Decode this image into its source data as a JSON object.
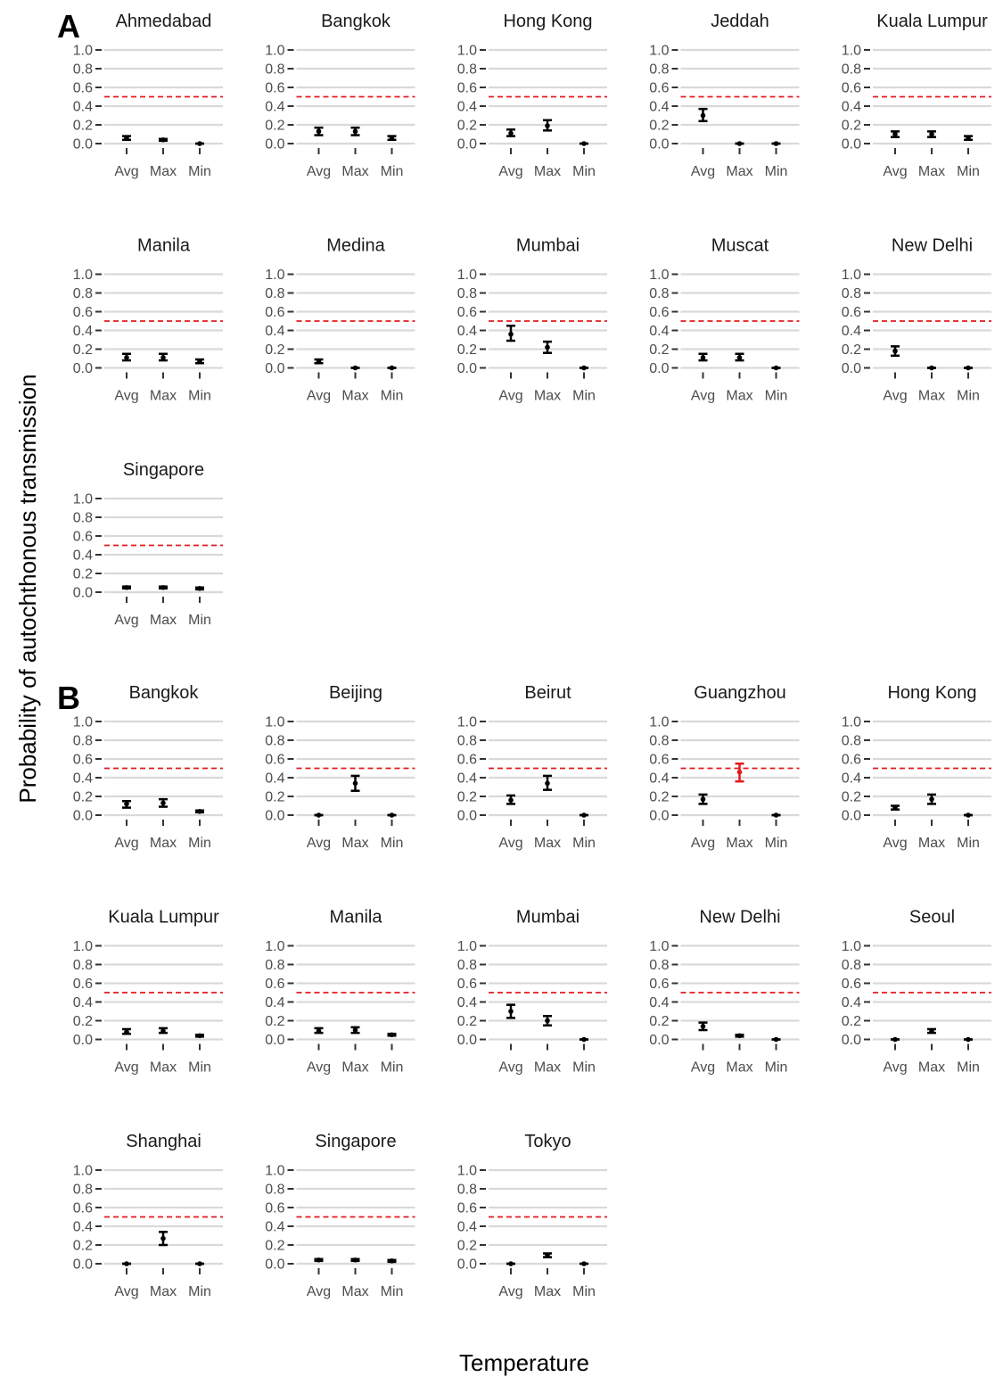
{
  "chart_data": {
    "type": "scatter",
    "xlabel": "Temperature",
    "ylabel": "Probability of autochthonous transmission",
    "ylim": [
      0,
      1
    ],
    "y_ticks": [
      "0.0",
      "0.2",
      "0.4",
      "0.6",
      "0.8",
      "1.0"
    ],
    "x_categories": [
      "Avg",
      "Max",
      "Min"
    ],
    "threshold": 0.5,
    "grid": true,
    "colors": {
      "point": "#000000",
      "highlight": "#e31a1c",
      "threshold": "#e31a1c",
      "grid": "#d9d9d9"
    },
    "panels": [
      {
        "label": "A",
        "facets": [
          {
            "city": "Ahmedabad",
            "points": [
              {
                "x": "Avg",
                "y": 0.06,
                "lo": 0.04,
                "hi": 0.08
              },
              {
                "x": "Max",
                "y": 0.04,
                "lo": 0.03,
                "hi": 0.05
              },
              {
                "x": "Min",
                "y": 0.0,
                "lo": 0.0,
                "hi": 0.0
              }
            ]
          },
          {
            "city": "Bangkok",
            "points": [
              {
                "x": "Avg",
                "y": 0.13,
                "lo": 0.09,
                "hi": 0.17
              },
              {
                "x": "Max",
                "y": 0.13,
                "lo": 0.09,
                "hi": 0.17
              },
              {
                "x": "Min",
                "y": 0.06,
                "lo": 0.04,
                "hi": 0.08
              }
            ]
          },
          {
            "city": "Hong Kong",
            "points": [
              {
                "x": "Avg",
                "y": 0.11,
                "lo": 0.08,
                "hi": 0.15
              },
              {
                "x": "Max",
                "y": 0.19,
                "lo": 0.14,
                "hi": 0.25
              },
              {
                "x": "Min",
                "y": 0.0,
                "lo": 0.0,
                "hi": 0.0
              }
            ]
          },
          {
            "city": "Jeddah",
            "points": [
              {
                "x": "Avg",
                "y": 0.3,
                "lo": 0.24,
                "hi": 0.37
              },
              {
                "x": "Max",
                "y": 0.0,
                "lo": 0.0,
                "hi": 0.0
              },
              {
                "x": "Min",
                "y": 0.0,
                "lo": 0.0,
                "hi": 0.0
              }
            ]
          },
          {
            "city": "Kuala Lumpur",
            "points": [
              {
                "x": "Avg",
                "y": 0.1,
                "lo": 0.07,
                "hi": 0.13
              },
              {
                "x": "Max",
                "y": 0.1,
                "lo": 0.07,
                "hi": 0.13
              },
              {
                "x": "Min",
                "y": 0.06,
                "lo": 0.04,
                "hi": 0.08
              }
            ]
          },
          {
            "city": "Manila",
            "points": [
              {
                "x": "Avg",
                "y": 0.11,
                "lo": 0.08,
                "hi": 0.15
              },
              {
                "x": "Max",
                "y": 0.11,
                "lo": 0.08,
                "hi": 0.15
              },
              {
                "x": "Min",
                "y": 0.07,
                "lo": 0.05,
                "hi": 0.09
              }
            ]
          },
          {
            "city": "Medina",
            "points": [
              {
                "x": "Avg",
                "y": 0.07,
                "lo": 0.05,
                "hi": 0.09
              },
              {
                "x": "Max",
                "y": 0.0,
                "lo": 0.0,
                "hi": 0.0
              },
              {
                "x": "Min",
                "y": 0.0,
                "lo": 0.0,
                "hi": 0.0
              }
            ]
          },
          {
            "city": "Mumbai",
            "points": [
              {
                "x": "Avg",
                "y": 0.36,
                "lo": 0.29,
                "hi": 0.45
              },
              {
                "x": "Max",
                "y": 0.22,
                "lo": 0.16,
                "hi": 0.28
              },
              {
                "x": "Min",
                "y": 0.0,
                "lo": 0.0,
                "hi": 0.0
              }
            ]
          },
          {
            "city": "Muscat",
            "points": [
              {
                "x": "Avg",
                "y": 0.11,
                "lo": 0.08,
                "hi": 0.15
              },
              {
                "x": "Max",
                "y": 0.11,
                "lo": 0.08,
                "hi": 0.15
              },
              {
                "x": "Min",
                "y": 0.0,
                "lo": 0.0,
                "hi": 0.0
              }
            ]
          },
          {
            "city": "New Delhi",
            "points": [
              {
                "x": "Avg",
                "y": 0.18,
                "lo": 0.13,
                "hi": 0.23
              },
              {
                "x": "Max",
                "y": 0.0,
                "lo": 0.0,
                "hi": 0.0
              },
              {
                "x": "Min",
                "y": 0.0,
                "lo": 0.0,
                "hi": 0.0
              }
            ]
          },
          {
            "city": "Singapore",
            "points": [
              {
                "x": "Avg",
                "y": 0.05,
                "lo": 0.04,
                "hi": 0.06
              },
              {
                "x": "Max",
                "y": 0.05,
                "lo": 0.04,
                "hi": 0.06
              },
              {
                "x": "Min",
                "y": 0.04,
                "lo": 0.03,
                "hi": 0.05
              }
            ]
          }
        ]
      },
      {
        "label": "B",
        "facets": [
          {
            "city": "Bangkok",
            "points": [
              {
                "x": "Avg",
                "y": 0.12,
                "lo": 0.08,
                "hi": 0.15
              },
              {
                "x": "Max",
                "y": 0.13,
                "lo": 0.09,
                "hi": 0.17
              },
              {
                "x": "Min",
                "y": 0.04,
                "lo": 0.03,
                "hi": 0.05
              }
            ]
          },
          {
            "city": "Beijing",
            "points": [
              {
                "x": "Avg",
                "y": 0.0,
                "lo": 0.0,
                "hi": 0.0
              },
              {
                "x": "Max",
                "y": 0.34,
                "lo": 0.26,
                "hi": 0.42
              },
              {
                "x": "Min",
                "y": 0.0,
                "lo": 0.0,
                "hi": 0.0
              }
            ]
          },
          {
            "city": "Beirut",
            "points": [
              {
                "x": "Avg",
                "y": 0.16,
                "lo": 0.12,
                "hi": 0.21
              },
              {
                "x": "Max",
                "y": 0.34,
                "lo": 0.27,
                "hi": 0.42
              },
              {
                "x": "Min",
                "y": 0.0,
                "lo": 0.0,
                "hi": 0.0
              }
            ]
          },
          {
            "city": "Guangzhou",
            "points": [
              {
                "x": "Avg",
                "y": 0.17,
                "lo": 0.12,
                "hi": 0.22
              },
              {
                "x": "Max",
                "y": 0.46,
                "lo": 0.36,
                "hi": 0.55,
                "highlight": true
              },
              {
                "x": "Min",
                "y": 0.0,
                "lo": 0.0,
                "hi": 0.0
              }
            ]
          },
          {
            "city": "Hong Kong",
            "points": [
              {
                "x": "Avg",
                "y": 0.08,
                "lo": 0.06,
                "hi": 0.1
              },
              {
                "x": "Max",
                "y": 0.17,
                "lo": 0.12,
                "hi": 0.22
              },
              {
                "x": "Min",
                "y": 0.0,
                "lo": 0.0,
                "hi": 0.0
              }
            ]
          },
          {
            "city": "Kuala Lumpur",
            "points": [
              {
                "x": "Avg",
                "y": 0.08,
                "lo": 0.06,
                "hi": 0.11
              },
              {
                "x": "Max",
                "y": 0.09,
                "lo": 0.07,
                "hi": 0.12
              },
              {
                "x": "Min",
                "y": 0.04,
                "lo": 0.03,
                "hi": 0.05
              }
            ]
          },
          {
            "city": "Manila",
            "points": [
              {
                "x": "Avg",
                "y": 0.09,
                "lo": 0.07,
                "hi": 0.12
              },
              {
                "x": "Max",
                "y": 0.1,
                "lo": 0.07,
                "hi": 0.13
              },
              {
                "x": "Min",
                "y": 0.05,
                "lo": 0.04,
                "hi": 0.06
              }
            ]
          },
          {
            "city": "Mumbai",
            "points": [
              {
                "x": "Avg",
                "y": 0.3,
                "lo": 0.23,
                "hi": 0.37
              },
              {
                "x": "Max",
                "y": 0.2,
                "lo": 0.15,
                "hi": 0.25
              },
              {
                "x": "Min",
                "y": 0.0,
                "lo": 0.0,
                "hi": 0.0
              }
            ]
          },
          {
            "city": "New Delhi",
            "points": [
              {
                "x": "Avg",
                "y": 0.14,
                "lo": 0.1,
                "hi": 0.18
              },
              {
                "x": "Max",
                "y": 0.04,
                "lo": 0.03,
                "hi": 0.05
              },
              {
                "x": "Min",
                "y": 0.0,
                "lo": 0.0,
                "hi": 0.0
              }
            ]
          },
          {
            "city": "Seoul",
            "points": [
              {
                "x": "Avg",
                "y": 0.0,
                "lo": 0.0,
                "hi": 0.0
              },
              {
                "x": "Max",
                "y": 0.09,
                "lo": 0.07,
                "hi": 0.11
              },
              {
                "x": "Min",
                "y": 0.0,
                "lo": 0.0,
                "hi": 0.0
              }
            ]
          },
          {
            "city": "Shanghai",
            "points": [
              {
                "x": "Avg",
                "y": 0.0,
                "lo": 0.0,
                "hi": 0.0
              },
              {
                "x": "Max",
                "y": 0.27,
                "lo": 0.2,
                "hi": 0.34
              },
              {
                "x": "Min",
                "y": 0.0,
                "lo": 0.0,
                "hi": 0.0
              }
            ]
          },
          {
            "city": "Singapore",
            "points": [
              {
                "x": "Avg",
                "y": 0.04,
                "lo": 0.03,
                "hi": 0.05
              },
              {
                "x": "Max",
                "y": 0.04,
                "lo": 0.03,
                "hi": 0.05
              },
              {
                "x": "Min",
                "y": 0.03,
                "lo": 0.02,
                "hi": 0.04
              }
            ]
          },
          {
            "city": "Tokyo",
            "points": [
              {
                "x": "Avg",
                "y": 0.0,
                "lo": 0.0,
                "hi": 0.0
              },
              {
                "x": "Max",
                "y": 0.09,
                "lo": 0.07,
                "hi": 0.11
              },
              {
                "x": "Min",
                "y": 0.0,
                "lo": 0.0,
                "hi": 0.0
              }
            ]
          }
        ]
      }
    ]
  }
}
